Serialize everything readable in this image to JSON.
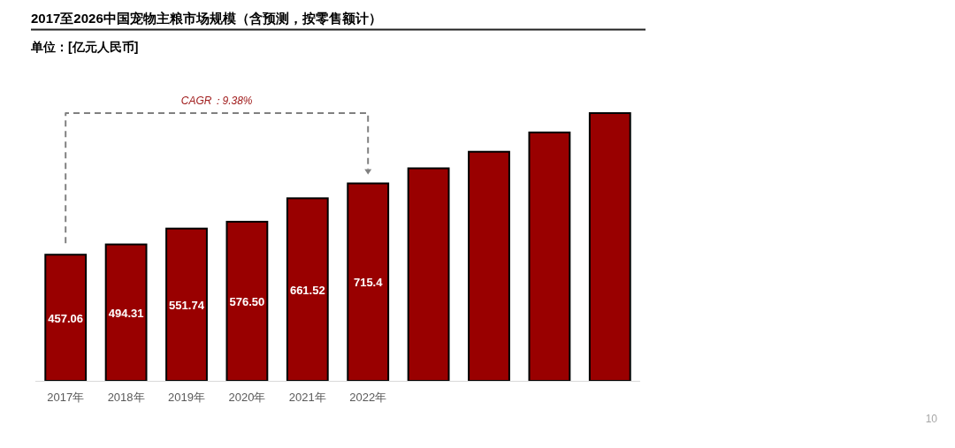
{
  "chart_data": {
    "type": "bar",
    "title": "2017至2026中国宠物主粮市场规模（含预测，按零售额计）",
    "subtitle": "单位：[亿元人民币]",
    "categories": [
      "2017年",
      "2018年",
      "2019年",
      "2020年",
      "2021年",
      "2022年",
      null,
      null,
      null,
      null
    ],
    "values": [
      457.06,
      494.31,
      551.74,
      576.5,
      661.52,
      715.4,
      770,
      830,
      900,
      970
    ],
    "value_labels": [
      "457.06",
      "494.31",
      "551.74",
      "576.50",
      "661.52",
      "715.4",
      null,
      null,
      null,
      null
    ],
    "color": "#990000",
    "annotations": [
      "CAGR：9.38%",
      "10"
    ]
  }
}
